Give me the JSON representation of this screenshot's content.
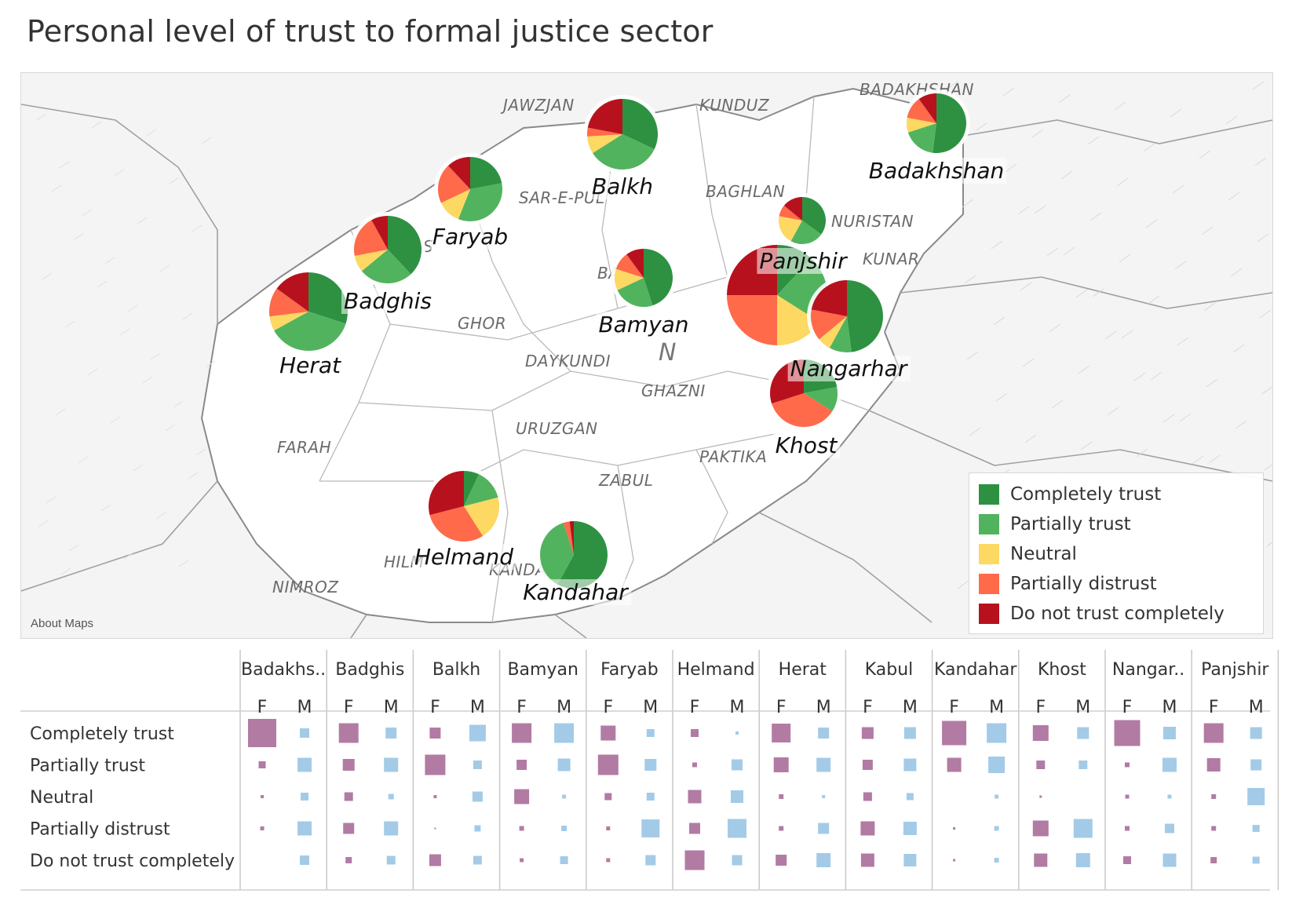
{
  "title": "Personal level of trust to formal justice sector",
  "map": {
    "about_link": "About Maps",
    "region_labels": [
      {
        "name": "JAWZJAN"
      },
      {
        "name": "KUNDUZ"
      },
      {
        "name": "BADAKHSHAN"
      },
      {
        "name": "SAR-E-PUL"
      },
      {
        "name": "BAGHLAN"
      },
      {
        "name": "NURISTAN"
      },
      {
        "name": "KUNAR"
      },
      {
        "name": "GHOR"
      },
      {
        "name": "DAYKUNDI"
      },
      {
        "name": "GHAZNI"
      },
      {
        "name": "URUZGAN"
      },
      {
        "name": "FARAH"
      },
      {
        "name": "PAKTIKA"
      },
      {
        "name": "ZABUL"
      },
      {
        "name": "NIMROZ"
      },
      {
        "name": "HILM"
      },
      {
        "name": "KANDA"
      },
      {
        "name": "BA"
      },
      {
        "name": "S"
      },
      {
        "name": "N"
      }
    ]
  },
  "legend": {
    "items": [
      {
        "label": "Completely trust",
        "color": "#2e9142"
      },
      {
        "label": "Partially trust",
        "color": "#52b35f"
      },
      {
        "label": "Neutral",
        "color": "#fdd862"
      },
      {
        "label": "Partially distrust",
        "color": "#fe6a4a"
      },
      {
        "label": "Do not trust completely",
        "color": "#b8111e"
      }
    ]
  },
  "chart_data": [
    {
      "type": "pie",
      "map_pies": true,
      "categories": [
        "Completely trust",
        "Partially trust",
        "Neutral",
        "Partially distrust",
        "Do not trust completely"
      ],
      "pies": [
        {
          "province": "Badakhshan",
          "values": [
            52,
            18,
            8,
            12,
            10
          ]
        },
        {
          "province": "Balkh",
          "values": [
            32,
            34,
            8,
            4,
            22
          ]
        },
        {
          "province": "Faryab",
          "values": [
            22,
            34,
            12,
            20,
            12
          ]
        },
        {
          "province": "Badghis",
          "values": [
            38,
            26,
            8,
            20,
            8
          ]
        },
        {
          "province": "Herat",
          "values": [
            30,
            37,
            6,
            12,
            15
          ]
        },
        {
          "province": "Bamyan",
          "values": [
            45,
            23,
            12,
            10,
            10
          ]
        },
        {
          "province": "Panjshir",
          "values": [
            35,
            23,
            20,
            8,
            14
          ]
        },
        {
          "province": "Kabul",
          "values": [
            12,
            22,
            16,
            25,
            25
          ]
        },
        {
          "province": "Nangarhar",
          "values": [
            48,
            10,
            6,
            14,
            22
          ]
        },
        {
          "province": "Khost",
          "values": [
            22,
            12,
            0,
            36,
            30
          ]
        },
        {
          "province": "Helmand",
          "values": [
            7,
            14,
            20,
            30,
            29
          ]
        },
        {
          "province": "Kandahar",
          "values": [
            58,
            37,
            0,
            3,
            2
          ]
        }
      ]
    },
    {
      "type": "heatmap",
      "title": "",
      "encoding": "square size",
      "provinces": [
        "Badakhs..",
        "Badghis",
        "Balkh",
        "Bamyan",
        "Faryab",
        "Helmand",
        "Herat",
        "Kabul",
        "Kandahar",
        "Khost",
        "Nangar..",
        "Panjshir"
      ],
      "genders": [
        "F",
        "M"
      ],
      "rows": [
        "Completely trust",
        "Partially trust",
        "Neutral",
        "Partially distrust",
        "Do not trust completely"
      ],
      "colors": {
        "F": "#b27ba3",
        "M": "#a3cbe7"
      },
      "values": [
        [
          [
            36,
            12
          ],
          [
            25,
            14
          ],
          [
            14,
            21
          ],
          [
            25,
            25
          ],
          [
            19,
            10
          ],
          [
            10,
            4
          ],
          [
            24,
            14
          ],
          [
            15,
            15
          ],
          [
            31,
            25
          ],
          [
            20,
            15
          ],
          [
            33,
            16
          ],
          [
            25,
            15
          ]
        ],
        [
          [
            9,
            18
          ],
          [
            15,
            18
          ],
          [
            26,
            11
          ],
          [
            13,
            16
          ],
          [
            26,
            15
          ],
          [
            6,
            14
          ],
          [
            19,
            18
          ],
          [
            13,
            16
          ],
          [
            18,
            21
          ],
          [
            11,
            11
          ],
          [
            6,
            18
          ],
          [
            17,
            14
          ]
        ],
        [
          [
            4,
            10
          ],
          [
            11,
            7
          ],
          [
            4,
            13
          ],
          [
            19,
            5
          ],
          [
            9,
            10
          ],
          [
            17,
            16
          ],
          [
            6,
            4
          ],
          [
            11,
            9
          ],
          [
            0,
            5
          ],
          [
            3,
            0
          ],
          [
            5,
            5
          ],
          [
            6,
            22
          ]
        ],
        [
          [
            5,
            18
          ],
          [
            14,
            18
          ],
          [
            2,
            8
          ],
          [
            6,
            7
          ],
          [
            5,
            23
          ],
          [
            14,
            24
          ],
          [
            6,
            14
          ],
          [
            18,
            17
          ],
          [
            3,
            6
          ],
          [
            20,
            24
          ],
          [
            6,
            12
          ],
          [
            6,
            9
          ]
        ],
        [
          [
            0,
            12
          ],
          [
            8,
            11
          ],
          [
            15,
            11
          ],
          [
            5,
            10
          ],
          [
            5,
            13
          ],
          [
            25,
            13
          ],
          [
            14,
            18
          ],
          [
            17,
            16
          ],
          [
            3,
            6
          ],
          [
            17,
            18
          ],
          [
            10,
            17
          ],
          [
            8,
            9
          ]
        ]
      ]
    }
  ]
}
